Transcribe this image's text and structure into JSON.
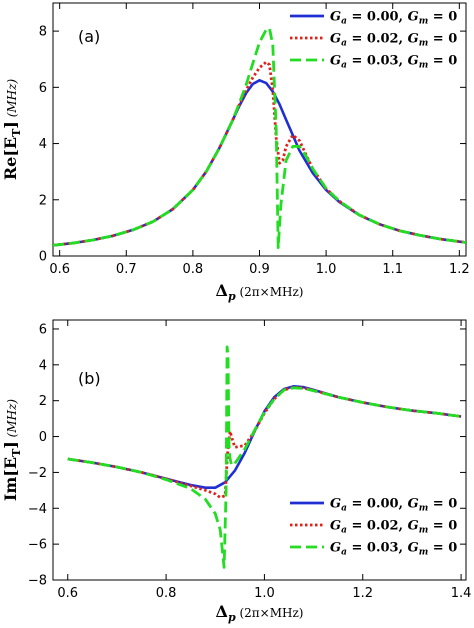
{
  "chart_data": [
    {
      "type": "line",
      "panel_label": "(a)",
      "ylabel_main": "Re[E",
      "ylabel_sub": "T",
      "ylabel_close": "]",
      "ylabel_unit": "(MHz)",
      "xlabel_main": "Δ",
      "xlabel_sub": "p",
      "xlabel_unit": "(2π×MHz)",
      "xlim": [
        0.59,
        1.21
      ],
      "ylim": [
        0,
        9
      ],
      "xticks": [
        "0.6",
        "0.7",
        "0.8",
        "0.9",
        "1.0",
        "1.1",
        "1.2"
      ],
      "yticks": [
        "0",
        "2",
        "4",
        "6",
        "8"
      ],
      "legend_position": "top-right",
      "series": [
        {
          "name": "G_a = 0.00, G_m = 0",
          "legend": {
            "ga": "G",
            "ga_sub": "a",
            "ga_val": " = 0.00,  ",
            "gm": "G",
            "gm_sub": "m",
            "gm_val": " = 0"
          },
          "color": "#1f2fd4",
          "dash": "solid",
          "x": [
            0.59,
            0.62,
            0.65,
            0.68,
            0.71,
            0.74,
            0.77,
            0.8,
            0.82,
            0.84,
            0.86,
            0.87,
            0.88,
            0.89,
            0.9,
            0.91,
            0.92,
            0.93,
            0.94,
            0.95,
            0.96,
            0.98,
            1.0,
            1.02,
            1.05,
            1.08,
            1.11,
            1.14,
            1.17,
            1.21
          ],
          "y": [
            0.38,
            0.46,
            0.57,
            0.72,
            0.93,
            1.22,
            1.67,
            2.35,
            3.0,
            3.85,
            4.85,
            5.35,
            5.8,
            6.12,
            6.25,
            6.15,
            5.85,
            5.4,
            4.85,
            4.3,
            3.75,
            2.95,
            2.35,
            1.92,
            1.45,
            1.13,
            0.9,
            0.74,
            0.61,
            0.48
          ]
        },
        {
          "name": "G_a = 0.02, G_m = 0",
          "legend": {
            "ga": "G",
            "ga_sub": "a",
            "ga_val": " = 0.02,  ",
            "gm": "G",
            "gm_sub": "m",
            "gm_val": " = 0"
          },
          "color": "#e0211a",
          "dash": "dot",
          "x": [
            0.59,
            0.62,
            0.65,
            0.68,
            0.71,
            0.74,
            0.77,
            0.8,
            0.82,
            0.84,
            0.86,
            0.87,
            0.88,
            0.89,
            0.9,
            0.91,
            0.915,
            0.92,
            0.925,
            0.93,
            0.935,
            0.94,
            0.95,
            0.96,
            0.97,
            0.98,
            1.0,
            1.02,
            1.05,
            1.08,
            1.11,
            1.14,
            1.17,
            1.21
          ],
          "y": [
            0.38,
            0.46,
            0.57,
            0.72,
            0.93,
            1.22,
            1.67,
            2.35,
            3.0,
            3.85,
            4.85,
            5.4,
            5.9,
            6.35,
            6.7,
            6.9,
            6.8,
            5.9,
            4.2,
            3.3,
            3.4,
            3.9,
            4.3,
            4.1,
            3.6,
            3.1,
            2.4,
            1.95,
            1.46,
            1.13,
            0.9,
            0.74,
            0.61,
            0.48
          ]
        },
        {
          "name": "G_a = 0.03, G_m = 0",
          "legend": {
            "ga": "G",
            "ga_sub": "a",
            "ga_val": " = 0.03,  ",
            "gm": "G",
            "gm_sub": "m",
            "gm_val": " = 0"
          },
          "color": "#22dd22",
          "dash": "dash",
          "x": [
            0.59,
            0.62,
            0.65,
            0.68,
            0.71,
            0.74,
            0.77,
            0.8,
            0.82,
            0.84,
            0.86,
            0.87,
            0.88,
            0.89,
            0.9,
            0.91,
            0.915,
            0.92,
            0.925,
            0.928,
            0.932,
            0.94,
            0.95,
            0.96,
            0.97,
            0.98,
            1.0,
            1.02,
            1.05,
            1.08,
            1.11,
            1.14,
            1.17,
            1.21
          ],
          "y": [
            0.38,
            0.46,
            0.57,
            0.72,
            0.93,
            1.22,
            1.67,
            2.35,
            3.0,
            3.85,
            4.85,
            5.45,
            6.1,
            6.85,
            7.6,
            8.05,
            8.1,
            7.5,
            4.5,
            0.3,
            1.8,
            3.4,
            3.9,
            3.9,
            3.55,
            3.1,
            2.4,
            1.95,
            1.46,
            1.13,
            0.9,
            0.74,
            0.61,
            0.48
          ]
        }
      ]
    },
    {
      "type": "line",
      "panel_label": "(b)",
      "ylabel_main": "Im[E",
      "ylabel_sub": "T",
      "ylabel_close": "]",
      "ylabel_unit": "(MHz)",
      "xlabel_main": "Δ",
      "xlabel_sub": "p",
      "xlabel_unit": "(2π×MHz)",
      "xlim": [
        0.57,
        1.41
      ],
      "ylim": [
        -8,
        6.5
      ],
      "xticks": [
        "0.6",
        "0.8",
        "1.0",
        "1.2",
        "1.4"
      ],
      "yticks": [
        "-8",
        "-6",
        "-4",
        "-2",
        "0",
        "2",
        "4",
        "6"
      ],
      "legend_position": "bottom-right",
      "series": [
        {
          "name": "G_a = 0.00, G_m = 0",
          "legend": {
            "ga": "G",
            "ga_sub": "a",
            "ga_val": " = 0.00,  ",
            "gm": "G",
            "gm_sub": "m",
            "gm_val": " = 0"
          },
          "color": "#1f2fd4",
          "dash": "solid",
          "x": [
            0.6,
            0.65,
            0.7,
            0.75,
            0.8,
            0.85,
            0.88,
            0.9,
            0.92,
            0.94,
            0.96,
            0.98,
            1.0,
            1.02,
            1.04,
            1.06,
            1.08,
            1.1,
            1.15,
            1.2,
            1.25,
            1.3,
            1.35,
            1.4
          ],
          "y": [
            -1.25,
            -1.45,
            -1.7,
            -2.0,
            -2.35,
            -2.7,
            -2.85,
            -2.85,
            -2.55,
            -1.9,
            -0.9,
            0.3,
            1.4,
            2.2,
            2.65,
            2.8,
            2.75,
            2.6,
            2.2,
            1.9,
            1.65,
            1.45,
            1.3,
            1.12
          ]
        },
        {
          "name": "G_a = 0.02, G_m = 0",
          "legend": {
            "ga": "G",
            "ga_sub": "a",
            "ga_val": " = 0.02,  ",
            "gm": "G",
            "gm_sub": "m",
            "gm_val": " = 0"
          },
          "color": "#e0211a",
          "dash": "dot",
          "x": [
            0.6,
            0.65,
            0.7,
            0.75,
            0.8,
            0.85,
            0.88,
            0.9,
            0.91,
            0.92,
            0.925,
            0.93,
            0.935,
            0.94,
            0.96,
            0.98,
            1.0,
            1.02,
            1.04,
            1.06,
            1.08,
            1.1,
            1.15,
            1.2,
            1.25,
            1.3,
            1.35,
            1.4
          ],
          "y": [
            -1.25,
            -1.45,
            -1.7,
            -2.0,
            -2.35,
            -2.75,
            -3.0,
            -3.2,
            -3.4,
            -3.3,
            -1.0,
            0.3,
            -0.2,
            -0.6,
            -0.5,
            0.3,
            1.3,
            2.1,
            2.6,
            2.75,
            2.7,
            2.58,
            2.2,
            1.9,
            1.65,
            1.45,
            1.3,
            1.12
          ]
        },
        {
          "name": "G_a = 0.03, G_m = 0",
          "legend": {
            "ga": "G",
            "ga_sub": "a",
            "ga_val": " = 0.03,  ",
            "gm": "G",
            "gm_sub": "m",
            "gm_val": " = 0"
          },
          "color": "#22dd22",
          "dash": "dash",
          "x": [
            0.6,
            0.65,
            0.7,
            0.75,
            0.8,
            0.85,
            0.88,
            0.9,
            0.91,
            0.918,
            0.922,
            0.924,
            0.926,
            0.928,
            0.93,
            0.933,
            0.94,
            0.96,
            0.98,
            1.0,
            1.02,
            1.04,
            1.06,
            1.08,
            1.1,
            1.15,
            1.2,
            1.25,
            1.3,
            1.35,
            1.4
          ],
          "y": [
            -1.25,
            -1.45,
            -1.7,
            -2.0,
            -2.4,
            -2.9,
            -3.5,
            -4.3,
            -5.2,
            -7.3,
            -3.0,
            5.0,
            4.5,
            -0.5,
            -1.2,
            -1.6,
            -1.5,
            -0.7,
            0.35,
            1.35,
            2.1,
            2.6,
            2.72,
            2.68,
            2.55,
            2.2,
            1.9,
            1.65,
            1.45,
            1.3,
            1.12
          ]
        }
      ]
    }
  ]
}
